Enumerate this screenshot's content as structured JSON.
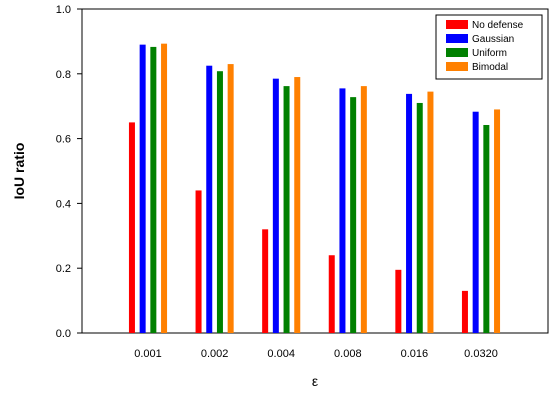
{
  "chart_data": {
    "type": "bar",
    "title": "",
    "xlabel": "ε",
    "ylabel": "IoU ratio",
    "categories": [
      "0.001",
      "0.002",
      "0.004",
      "0.008",
      "0.016",
      "0.0320"
    ],
    "ylim": [
      0,
      1.0
    ],
    "yticks": [
      "0.0",
      "0.2",
      "0.4",
      "0.6",
      "0.8",
      "1.0"
    ],
    "grid": false,
    "legend_position": "top-right",
    "series": [
      {
        "name": "No defense",
        "color": "#ff0000",
        "values": [
          0.65,
          0.44,
          0.32,
          0.24,
          0.195,
          0.13
        ]
      },
      {
        "name": "Gaussian",
        "color": "#0000ff",
        "values": [
          0.89,
          0.825,
          0.785,
          0.755,
          0.738,
          0.683
        ]
      },
      {
        "name": "Uniform",
        "color": "#008000",
        "values": [
          0.883,
          0.808,
          0.762,
          0.728,
          0.71,
          0.642
        ]
      },
      {
        "name": "Bimodal",
        "color": "#ff8000",
        "values": [
          0.893,
          0.83,
          0.79,
          0.762,
          0.745,
          0.69
        ]
      }
    ]
  }
}
